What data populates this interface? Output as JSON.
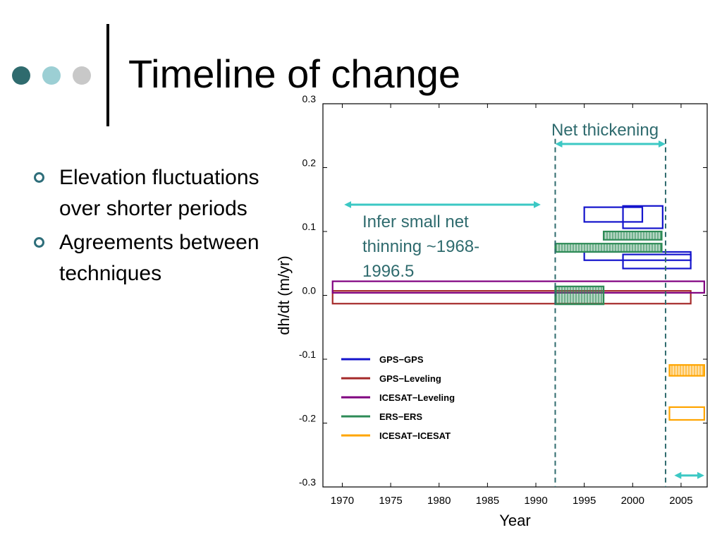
{
  "slide": {
    "title": "Timeline of change",
    "bullets": [
      "Elevation fluctuations over shorter periods",
      "Agreements between techniques"
    ],
    "dot_colors": [
      "#2f6b6e",
      "#9ccfd4",
      "#c8c8c8"
    ],
    "accent": "#2e6e7a"
  },
  "chart_data": {
    "type": "timeline-box",
    "xlabel": "Year",
    "ylabel": "dh/dt (m/yr)",
    "xlim": [
      1968,
      2007.7
    ],
    "ylim": [
      -0.3,
      0.3
    ],
    "xticks": [
      1970,
      1975,
      1980,
      1985,
      1990,
      1995,
      2000,
      2005
    ],
    "yticks": [
      {
        "value": 0.3,
        "label": "0.3"
      },
      {
        "value": 0.2,
        "label": "0.2"
      },
      {
        "value": 0.1,
        "label": "0.1"
      },
      {
        "value": 0.0,
        "label": "0.0"
      },
      {
        "value": -0.1,
        "label": "-0.1"
      },
      {
        "value": -0.2,
        "label": "-0.2"
      },
      {
        "value": -0.3,
        "label": "-0.3"
      }
    ],
    "legend": {
      "placement": "lower-left",
      "entries": [
        {
          "name": "GPS−GPS",
          "color": "#1414cc"
        },
        {
          "name": "GPS−Leveling",
          "color": "#a52a2a"
        },
        {
          "name": "ICESAT−Leveling",
          "color": "#800080"
        },
        {
          "name": "ERS−ERS",
          "color": "#2e8b57"
        },
        {
          "name": "ICESAT−ICESAT",
          "color": "#ffa500"
        }
      ]
    },
    "series": [
      {
        "name": "GPS−GPS",
        "color": "#1414cc",
        "hatched": false,
        "boxes": [
          {
            "x": [
              1995.0,
              2001.0
            ],
            "y": [
              0.115,
              0.138
            ]
          },
          {
            "x": [
              1999.0,
              2003.1
            ],
            "y": [
              0.105,
              0.14
            ]
          },
          {
            "x": [
              1995.0,
              2006.0
            ],
            "y": [
              0.055,
              0.068
            ]
          },
          {
            "x": [
              1999.0,
              2006.0
            ],
            "y": [
              0.042,
              0.064
            ]
          }
        ]
      },
      {
        "name": "GPS−Leveling",
        "color": "#a52a2a",
        "hatched": false,
        "boxes": [
          {
            "x": [
              1969.0,
              2006.0
            ],
            "y": [
              -0.013,
              0.007
            ]
          }
        ]
      },
      {
        "name": "ICESAT−Leveling",
        "color": "#800080",
        "hatched": false,
        "boxes": [
          {
            "x": [
              1969.0,
              2007.4
            ],
            "y": [
              0.004,
              0.022
            ]
          }
        ]
      },
      {
        "name": "ERS−ERS",
        "color": "#2e8b57",
        "hatched": true,
        "boxes": [
          {
            "x": [
              1997.0,
              2003.0
            ],
            "y": [
              0.087,
              0.1
            ]
          },
          {
            "x": [
              1992.0,
              2003.0
            ],
            "y": [
              0.068,
              0.081
            ]
          },
          {
            "x": [
              1992.0,
              1997.0
            ],
            "y": [
              -0.014,
              0.014
            ]
          }
        ]
      },
      {
        "name": "ICESAT−ICESAT",
        "color": "#ffa500",
        "hatched": true,
        "boxes": [
          {
            "x": [
              2003.8,
              2007.4
            ],
            "y": [
              -0.126,
              -0.109
            ]
          }
        ]
      },
      {
        "name": "ICESAT−ICESAT",
        "color": "#ffa500",
        "hatched": false,
        "boxes": [
          {
            "x": [
              2003.8,
              2007.4
            ],
            "y": [
              -0.195,
              -0.175
            ]
          }
        ]
      }
    ],
    "dashed_lines": {
      "x": [
        1992.0,
        2003.4
      ],
      "color": "#2f6b6e"
    },
    "annotations": {
      "color": "#2f6b6e",
      "arrow_color": "#3cc8c4",
      "net_thickening": "Net thickening",
      "infer_thinning": [
        "Infer small net",
        "thinning ~1968-",
        "1996.5"
      ],
      "arrows": [
        {
          "x": [
            1970.2,
            1990.5
          ],
          "y": 0.142
        },
        {
          "x": [
            1992.0,
            2003.4
          ],
          "y": 0.237
        },
        {
          "x": [
            2004.3,
            2007.4
          ],
          "y": -0.282
        }
      ]
    }
  }
}
